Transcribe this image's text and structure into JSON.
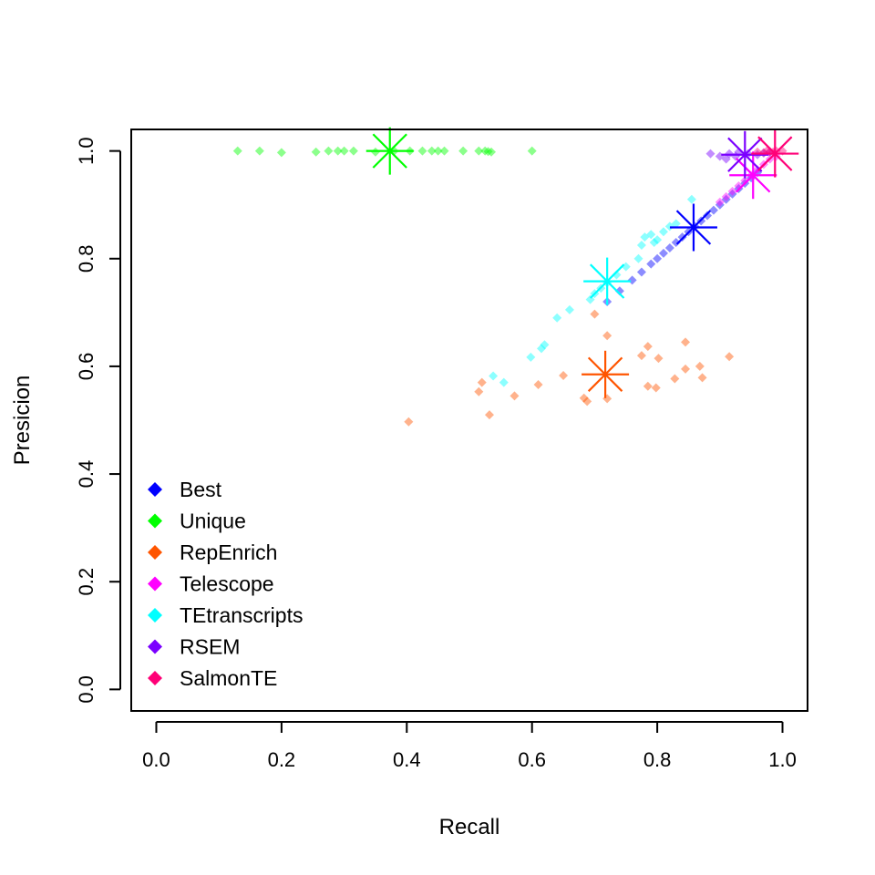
{
  "chart_data": {
    "type": "scatter",
    "xlabel": "Recall",
    "ylabel": "Presicion",
    "xlim": [
      -0.04,
      1.04
    ],
    "ylim": [
      -0.04,
      1.04
    ],
    "x_ticks": [
      "0.0",
      "0.2",
      "0.4",
      "0.6",
      "0.8",
      "1.0"
    ],
    "y_ticks": [
      "0.0",
      "0.2",
      "0.4",
      "0.6",
      "0.8",
      "1.0"
    ],
    "grid": false,
    "legend_position": "bottom-left",
    "series": [
      {
        "name": "Best",
        "color": "#0000FF",
        "points": [
          [
            0.72,
            0.72
          ],
          [
            0.74,
            0.74
          ],
          [
            0.76,
            0.76
          ],
          [
            0.775,
            0.775
          ],
          [
            0.79,
            0.79
          ],
          [
            0.8,
            0.8
          ],
          [
            0.81,
            0.81
          ],
          [
            0.82,
            0.82
          ],
          [
            0.83,
            0.83
          ],
          [
            0.84,
            0.84
          ],
          [
            0.85,
            0.85
          ],
          [
            0.86,
            0.86
          ],
          [
            0.87,
            0.87
          ],
          [
            0.88,
            0.88
          ],
          [
            0.89,
            0.89
          ],
          [
            0.9,
            0.9
          ],
          [
            0.91,
            0.91
          ],
          [
            0.92,
            0.92
          ],
          [
            0.93,
            0.93
          ],
          [
            0.94,
            0.94
          ],
          [
            0.95,
            0.95
          ],
          [
            0.96,
            0.96
          ]
        ],
        "summary": [
          0.858,
          0.858
        ]
      },
      {
        "name": "Unique",
        "color": "#00FF00",
        "points": [
          [
            0.13,
            1.0
          ],
          [
            0.165,
            1.0
          ],
          [
            0.2,
            0.997
          ],
          [
            0.255,
            0.998
          ],
          [
            0.275,
            1.0
          ],
          [
            0.29,
            1.0
          ],
          [
            0.3,
            1.0
          ],
          [
            0.315,
            1.0
          ],
          [
            0.35,
            0.998
          ],
          [
            0.38,
            1.0
          ],
          [
            0.405,
            1.0
          ],
          [
            0.425,
            1.0
          ],
          [
            0.44,
            1.0
          ],
          [
            0.45,
            1.0
          ],
          [
            0.46,
            1.0
          ],
          [
            0.49,
            1.0
          ],
          [
            0.515,
            1.0
          ],
          [
            0.525,
            1.0
          ],
          [
            0.53,
            0.999
          ],
          [
            0.535,
            0.998
          ],
          [
            0.6,
            1.0
          ]
        ],
        "summary": [
          0.373,
          1.0
        ]
      },
      {
        "name": "RepEnrich",
        "color": "#FF5500",
        "points": [
          [
            0.403,
            0.497
          ],
          [
            0.515,
            0.553
          ],
          [
            0.52,
            0.57
          ],
          [
            0.532,
            0.51
          ],
          [
            0.572,
            0.545
          ],
          [
            0.61,
            0.566
          ],
          [
            0.65,
            0.583
          ],
          [
            0.683,
            0.541
          ],
          [
            0.688,
            0.535
          ],
          [
            0.7,
            0.697
          ],
          [
            0.72,
            0.657
          ],
          [
            0.72,
            0.54
          ],
          [
            0.775,
            0.62
          ],
          [
            0.785,
            0.637
          ],
          [
            0.785,
            0.563
          ],
          [
            0.798,
            0.56
          ],
          [
            0.802,
            0.615
          ],
          [
            0.828,
            0.577
          ],
          [
            0.845,
            0.645
          ],
          [
            0.845,
            0.595
          ],
          [
            0.868,
            0.6
          ],
          [
            0.872,
            0.579
          ],
          [
            0.915,
            0.618
          ]
        ],
        "summary": [
          0.717,
          0.585
        ]
      },
      {
        "name": "Telescope",
        "color": "#FF00FF",
        "points": [
          [
            0.9,
            0.905
          ],
          [
            0.91,
            0.915
          ],
          [
            0.92,
            0.925
          ],
          [
            0.93,
            0.935
          ],
          [
            0.94,
            0.945
          ],
          [
            0.95,
            0.955
          ],
          [
            0.96,
            0.965
          ],
          [
            0.97,
            0.975
          ],
          [
            0.98,
            0.985
          ],
          [
            0.99,
            0.99
          ]
        ],
        "summary": [
          0.953,
          0.955
        ]
      },
      {
        "name": "TEtranscripts",
        "color": "#00FFFF",
        "points": [
          [
            0.538,
            0.582
          ],
          [
            0.555,
            0.57
          ],
          [
            0.598,
            0.617
          ],
          [
            0.615,
            0.633
          ],
          [
            0.62,
            0.64
          ],
          [
            0.64,
            0.69
          ],
          [
            0.66,
            0.705
          ],
          [
            0.693,
            0.724
          ],
          [
            0.7,
            0.735
          ],
          [
            0.71,
            0.745
          ],
          [
            0.72,
            0.755
          ],
          [
            0.735,
            0.77
          ],
          [
            0.75,
            0.785
          ],
          [
            0.77,
            0.8
          ],
          [
            0.775,
            0.825
          ],
          [
            0.78,
            0.84
          ],
          [
            0.79,
            0.845
          ],
          [
            0.795,
            0.83
          ],
          [
            0.8,
            0.835
          ],
          [
            0.81,
            0.85
          ],
          [
            0.82,
            0.86
          ],
          [
            0.83,
            0.865
          ],
          [
            0.855,
            0.91
          ]
        ],
        "summary": [
          0.72,
          0.758
        ]
      },
      {
        "name": "RSEM",
        "color": "#7B00FF",
        "points": [
          [
            0.885,
            0.995
          ],
          [
            0.9,
            0.99
          ],
          [
            0.91,
            0.985
          ],
          [
            0.915,
            0.995
          ],
          [
            0.925,
            0.99
          ],
          [
            0.93,
            0.998
          ],
          [
            0.945,
            0.995
          ],
          [
            0.96,
            0.993
          ],
          [
            0.97,
            0.996
          ],
          [
            0.98,
            0.998
          ]
        ],
        "summary": [
          0.94,
          0.993
        ]
      },
      {
        "name": "SalmonTE",
        "color": "#FF0077",
        "points": [
          [
            0.96,
            0.998
          ],
          [
            0.97,
            0.997
          ],
          [
            0.975,
            1.0
          ],
          [
            0.98,
            0.999
          ],
          [
            0.985,
            0.998
          ],
          [
            0.99,
            1.0
          ],
          [
            1.0,
            1.0
          ]
        ],
        "summary": [
          0.988,
          0.995
        ]
      }
    ]
  }
}
